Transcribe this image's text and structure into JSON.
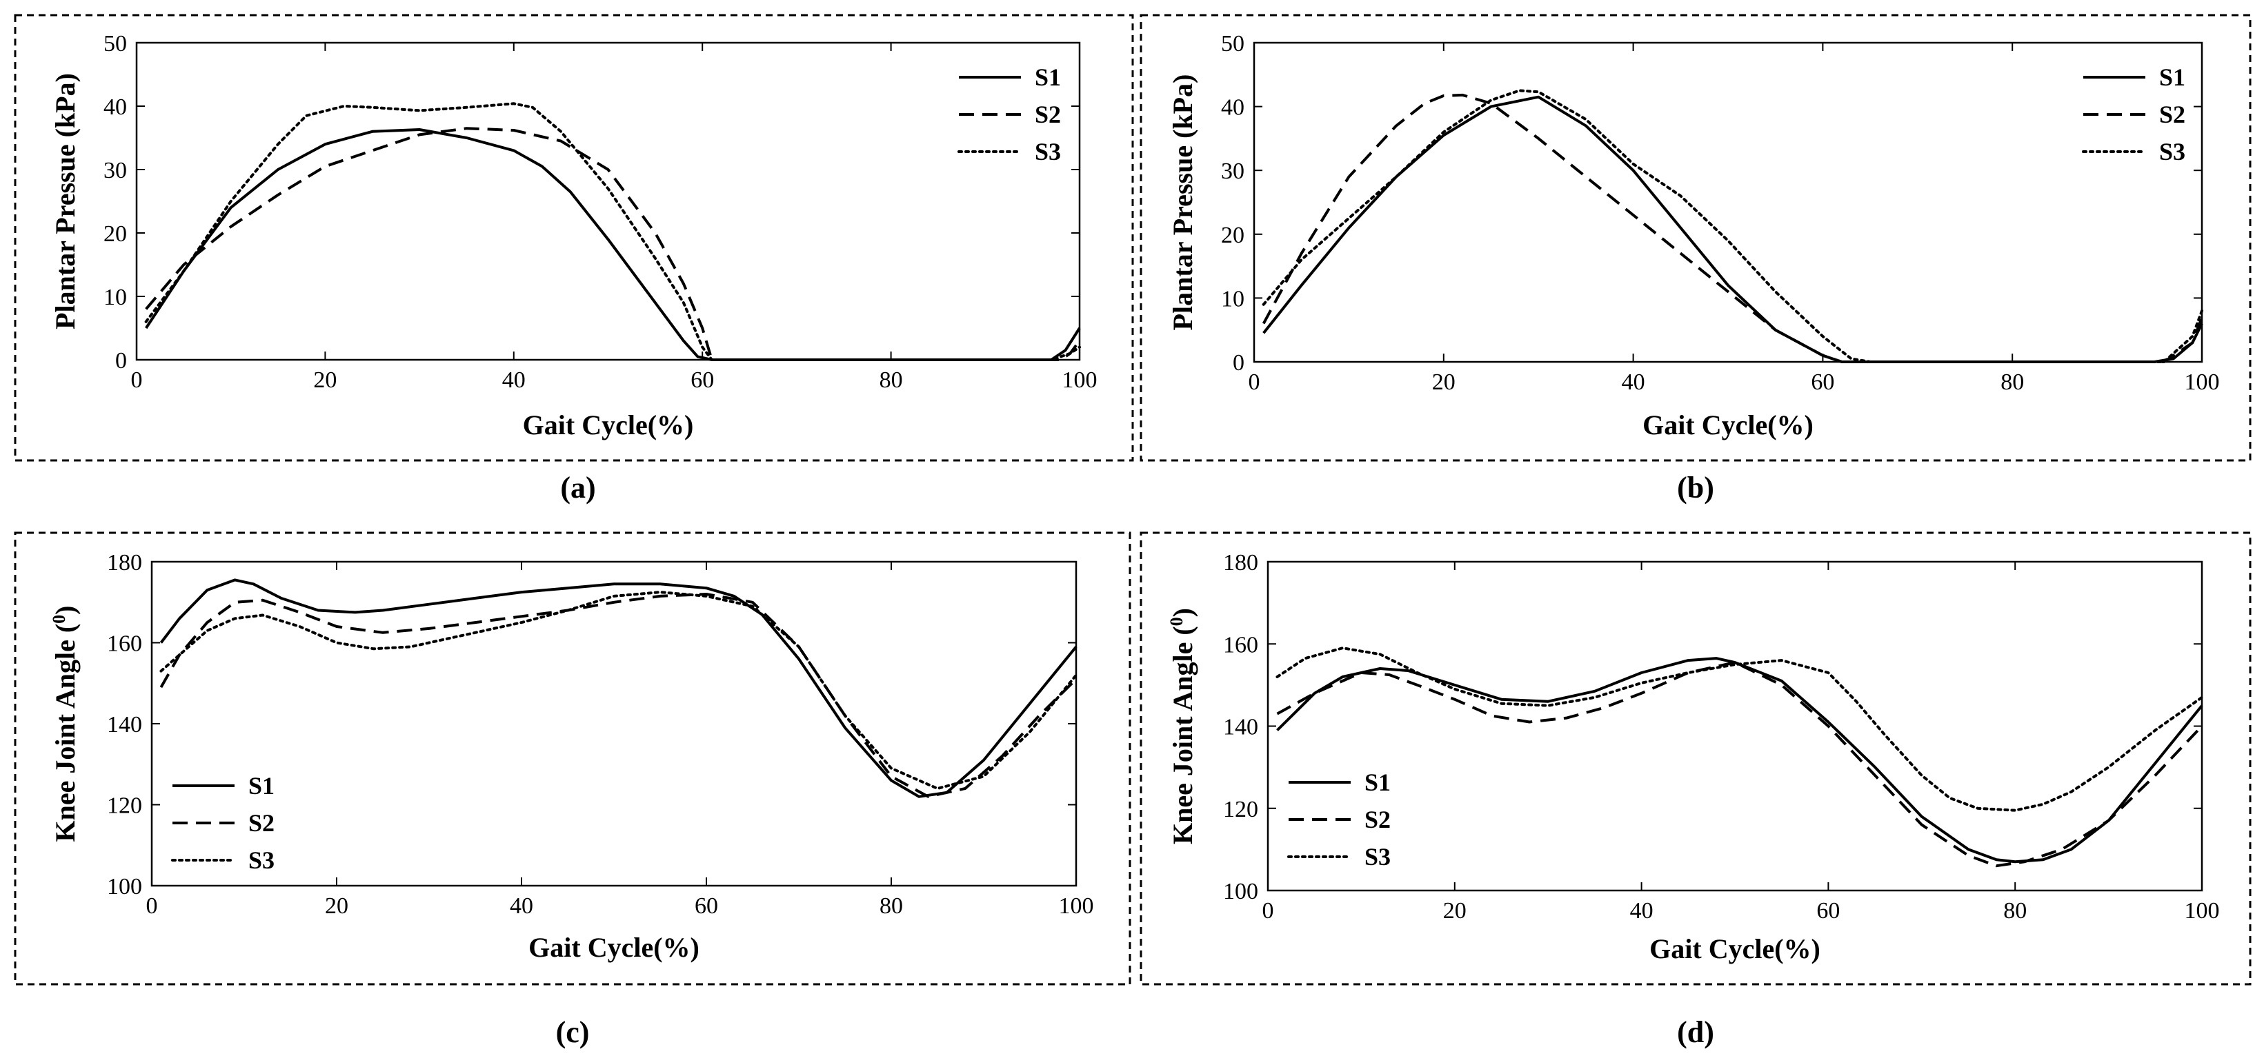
{
  "chart_data": [
    {
      "type": "line",
      "caption": "(a)",
      "xlabel": "Gait Cycle(%)",
      "ylabel": "Plantar Pressue (kPa)",
      "ylabel_sup": "",
      "xlim": [
        0,
        100
      ],
      "ylim": [
        0,
        50
      ],
      "xticks": [
        0,
        20,
        40,
        60,
        80,
        100
      ],
      "yticks": [
        0,
        10,
        20,
        30,
        40,
        50
      ],
      "legend": "top-right",
      "series": [
        {
          "name": "S1",
          "style": "solid",
          "x": [
            1,
            5,
            10,
            15,
            20,
            25,
            30,
            35,
            40,
            43,
            46,
            50,
            55,
            58,
            59.5,
            61,
            70,
            80,
            90,
            97,
            98.5,
            100
          ],
          "y": [
            5,
            14,
            24,
            30,
            34,
            36,
            36.3,
            35,
            33,
            30.5,
            26.5,
            19,
            9,
            3,
            0.5,
            0,
            0,
            0,
            0,
            0,
            1.5,
            5
          ]
        },
        {
          "name": "S2",
          "style": "dashed",
          "x": [
            1,
            5,
            10,
            15,
            20,
            25,
            30,
            35,
            40,
            45,
            50,
            55,
            58,
            60,
            61,
            70,
            80,
            90,
            98,
            99,
            100
          ],
          "y": [
            8,
            15,
            21,
            26,
            30.5,
            33,
            35.5,
            36.5,
            36.2,
            34.5,
            30,
            20,
            12,
            5,
            0,
            0,
            0,
            0,
            0,
            1,
            3
          ]
        },
        {
          "name": "S3",
          "style": "dotted",
          "x": [
            1,
            5,
            10,
            15,
            18,
            22,
            25,
            30,
            35,
            40,
            42,
            45,
            50,
            55,
            58,
            60,
            61,
            70,
            80,
            90,
            97,
            99,
            100
          ],
          "y": [
            6,
            14,
            25,
            34,
            38.5,
            40,
            39.8,
            39.3,
            39.8,
            40.4,
            39.8,
            36,
            27,
            16,
            9,
            2,
            0,
            0,
            0,
            0,
            0,
            1,
            2
          ]
        }
      ]
    },
    {
      "type": "line",
      "caption": "(b)",
      "xlabel": "Gait Cycle(%)",
      "ylabel": "Plantar Pressue (kPa)",
      "ylabel_sup": "",
      "xlim": [
        0,
        100
      ],
      "ylim": [
        0,
        50
      ],
      "xticks": [
        0,
        20,
        40,
        60,
        80,
        100
      ],
      "yticks": [
        0,
        10,
        20,
        30,
        40,
        50
      ],
      "legend": "top-right",
      "series": [
        {
          "name": "S1",
          "style": "solid",
          "x": [
            1,
            5,
            10,
            15,
            20,
            25,
            30,
            35,
            40,
            45,
            50,
            55,
            60,
            62,
            65,
            70,
            80,
            90,
            95,
            97,
            99,
            100
          ],
          "y": [
            4.5,
            12,
            21,
            29,
            35.5,
            40,
            41.5,
            37,
            30,
            21,
            12,
            5,
            1,
            0,
            0,
            0,
            0,
            0,
            0,
            0.5,
            3,
            6
          ]
        },
        {
          "name": "S2",
          "style": "dashed",
          "x": [
            1,
            5,
            10,
            15,
            18,
            20,
            22,
            25,
            30,
            35,
            40,
            45,
            50,
            55,
            60,
            62,
            70,
            80,
            90,
            96,
            99,
            100
          ],
          "y": [
            6,
            17,
            29,
            37,
            40.5,
            41.7,
            41.8,
            40.5,
            35,
            29,
            23,
            17,
            11,
            5,
            1,
            0,
            0,
            0,
            0,
            0,
            3,
            7
          ]
        },
        {
          "name": "S3",
          "style": "dotted",
          "x": [
            1,
            5,
            10,
            15,
            20,
            25,
            28,
            30,
            35,
            40,
            45,
            50,
            55,
            60,
            63,
            65,
            70,
            80,
            90,
            96,
            99,
            100
          ],
          "y": [
            9,
            16,
            22.5,
            29,
            36,
            41,
            42.5,
            42.3,
            38,
            31,
            26,
            19,
            11,
            4,
            0.5,
            0,
            0,
            0,
            0,
            0,
            4,
            8
          ]
        }
      ]
    },
    {
      "type": "line",
      "caption": "(c)",
      "xlabel": "Gait Cycle(%)",
      "ylabel": "Knee Joint Angle (",
      "ylabel_sup": "0",
      "ylabel_close": ")",
      "xlim": [
        0,
        100
      ],
      "ylim": [
        100,
        180
      ],
      "xticks": [
        0,
        20,
        40,
        60,
        80,
        100
      ],
      "yticks": [
        100,
        120,
        140,
        160,
        180
      ],
      "legend": "bottom-left",
      "series": [
        {
          "name": "S1",
          "style": "solid",
          "x": [
            1,
            3,
            6,
            9,
            11,
            14,
            18,
            22,
            25,
            30,
            35,
            40,
            45,
            50,
            55,
            60,
            63,
            66,
            70,
            75,
            80,
            83,
            86,
            90,
            95,
            100
          ],
          "y": [
            160,
            166,
            173,
            175.5,
            174.5,
            171,
            168,
            167.5,
            168,
            169.5,
            171,
            172.5,
            173.5,
            174.5,
            174.5,
            173.5,
            171.5,
            167,
            156,
            139,
            126,
            122,
            123,
            131,
            145,
            159
          ]
        },
        {
          "name": "S2",
          "style": "dashed",
          "x": [
            1,
            3,
            6,
            9,
            12,
            16,
            20,
            25,
            30,
            35,
            40,
            45,
            50,
            55,
            60,
            65,
            70,
            75,
            80,
            84,
            88,
            92,
            96,
            100
          ],
          "y": [
            149,
            157,
            165,
            170,
            170.5,
            167.5,
            164,
            162.5,
            163.5,
            165,
            166.5,
            168,
            170,
            171.5,
            172,
            170,
            159,
            142,
            127,
            122,
            124,
            132,
            142,
            151
          ]
        },
        {
          "name": "S3",
          "style": "dotted",
          "x": [
            1,
            3,
            6,
            9,
            12,
            16,
            20,
            24,
            28,
            32,
            36,
            40,
            45,
            50,
            55,
            60,
            65,
            70,
            75,
            80,
            85,
            90,
            95,
            100
          ],
          "y": [
            153,
            157,
            163,
            166,
            166.8,
            164,
            160,
            158.5,
            159,
            161,
            163,
            165,
            168,
            171.5,
            172.5,
            171.5,
            169,
            159,
            142,
            129,
            124,
            127,
            138,
            152
          ]
        }
      ]
    },
    {
      "type": "line",
      "caption": "(d)",
      "xlabel": "Gait Cycle(%)",
      "ylabel": "Knee Joint Angle (",
      "ylabel_sup": "0",
      "ylabel_close": ")",
      "xlim": [
        0,
        100
      ],
      "ylim": [
        100,
        180
      ],
      "xticks": [
        0,
        20,
        40,
        60,
        80,
        100
      ],
      "yticks": [
        100,
        120,
        140,
        160,
        180
      ],
      "legend": "bottom-left",
      "series": [
        {
          "name": "S1",
          "style": "solid",
          "x": [
            1,
            5,
            8,
            12,
            15,
            20,
            25,
            30,
            35,
            40,
            45,
            48,
            50,
            55,
            60,
            65,
            70,
            75,
            78,
            80,
            83,
            86,
            90,
            95,
            100
          ],
          "y": [
            139,
            148,
            152,
            154,
            153.5,
            150,
            146.5,
            146,
            148.5,
            153,
            156,
            156.5,
            155.5,
            151,
            141,
            130,
            118,
            110,
            107.5,
            107,
            107.5,
            110,
            117,
            131,
            145
          ]
        },
        {
          "name": "S2",
          "style": "dashed",
          "x": [
            1,
            5,
            10,
            13,
            16,
            20,
            24,
            28,
            32,
            36,
            40,
            45,
            50,
            55,
            60,
            65,
            70,
            75,
            78,
            81,
            85,
            90,
            95,
            100
          ],
          "y": [
            143,
            148,
            153,
            152.5,
            150,
            146.5,
            142.5,
            141,
            142,
            144.5,
            148,
            153,
            155.5,
            150,
            140,
            128,
            116,
            108.5,
            106,
            107,
            110,
            117,
            128,
            140
          ]
        },
        {
          "name": "S3",
          "style": "dotted",
          "x": [
            1,
            4,
            8,
            12,
            16,
            20,
            25,
            30,
            35,
            40,
            45,
            50,
            55,
            60,
            63,
            66,
            70,
            73,
            76,
            80,
            83,
            86,
            90,
            95,
            100
          ],
          "y": [
            152,
            156.5,
            159,
            157.5,
            153,
            149,
            145.5,
            145,
            147,
            150.5,
            153,
            155,
            156,
            153,
            146,
            138,
            128,
            122.5,
            120,
            119.5,
            121,
            124,
            130,
            139,
            147
          ]
        }
      ]
    }
  ]
}
